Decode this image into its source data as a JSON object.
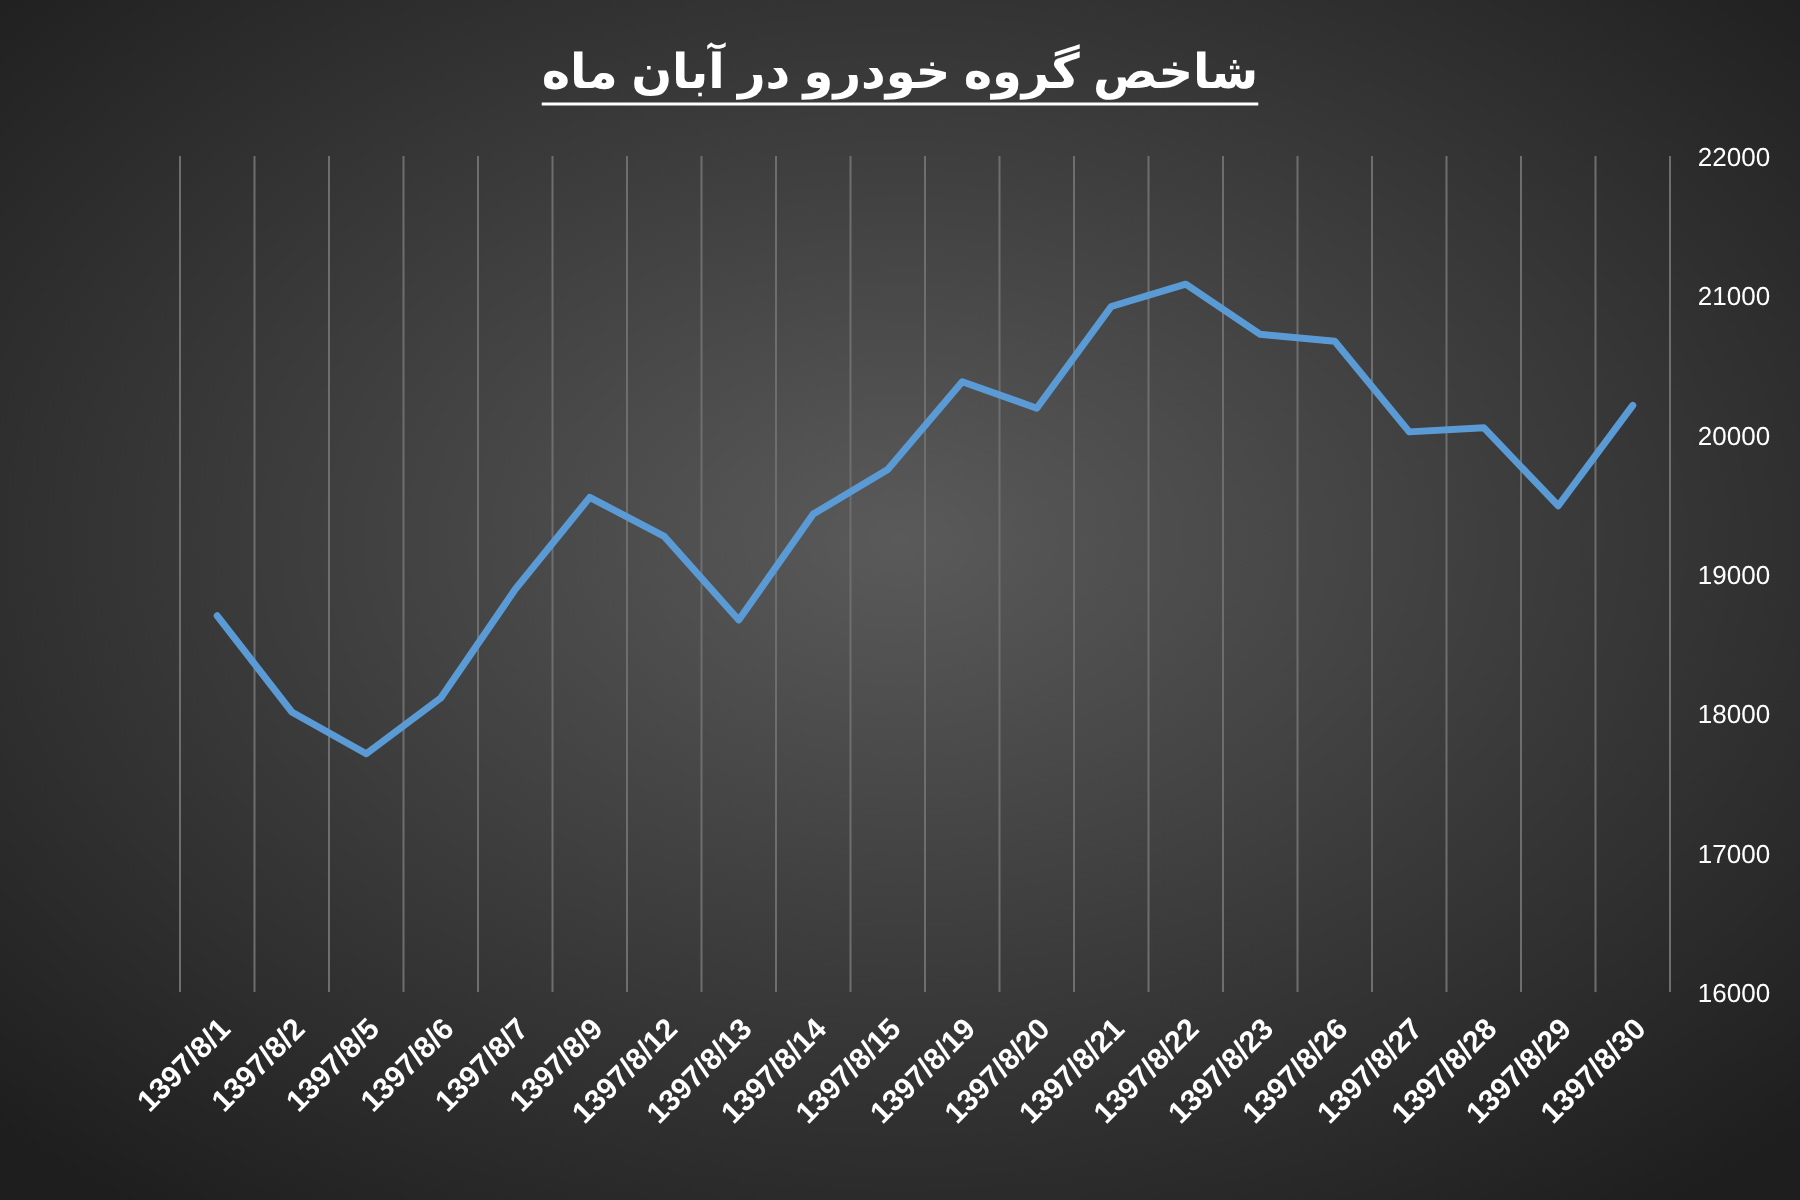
{
  "chart_data": {
    "type": "line",
    "title": "شاخص گروه خودرو در آبان ماه",
    "categories": [
      "1397/8/1",
      "1397/8/2",
      "1397/8/5",
      "1397/8/6",
      "1397/8/7",
      "1397/8/9",
      "1397/8/12",
      "1397/8/13",
      "1397/8/14",
      "1397/8/15",
      "1397/8/19",
      "1397/8/20",
      "1397/8/21",
      "1397/8/22",
      "1397/8/23",
      "1397/8/26",
      "1397/8/27",
      "1397/8/28",
      "1397/8/29",
      "1397/8/30"
    ],
    "series": [
      {
        "color": "#5b9bd5",
        "values": [
          18700,
          18010,
          17710,
          18110,
          18890,
          19550,
          19270,
          18670,
          19430,
          19750,
          20380,
          20190,
          20920,
          21080,
          20720,
          20670,
          20020,
          20050,
          19490,
          20210
        ]
      }
    ],
    "ylim": [
      16000,
      22000
    ],
    "yticks": [
      16000,
      17000,
      18000,
      19000,
      20000,
      21000,
      22000
    ],
    "grid": "x"
  }
}
